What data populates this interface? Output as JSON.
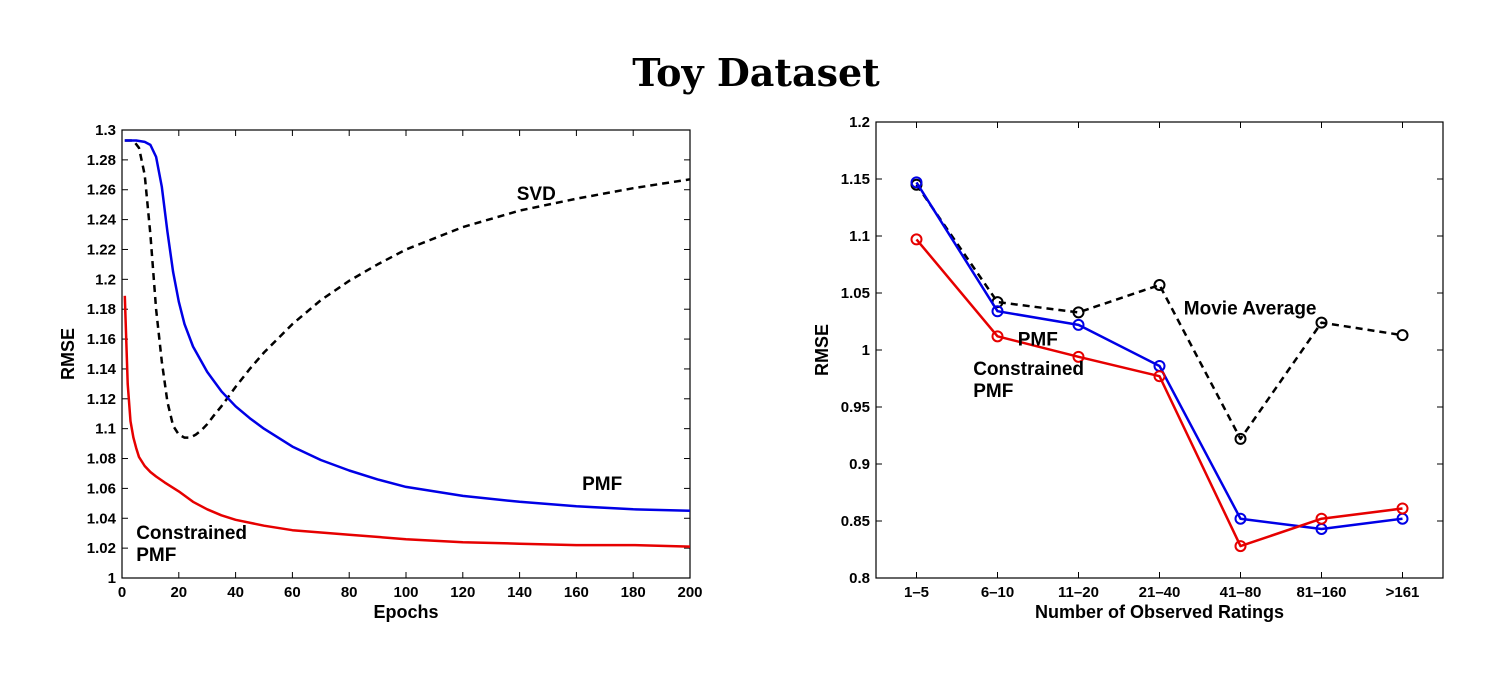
{
  "title": "Toy Dataset",
  "colors": {
    "pmf": "#0000e6",
    "constrained": "#e60000",
    "svd": "#000000",
    "avg": "#000000"
  },
  "chart_data": [
    {
      "type": "line",
      "xlabel": "Epochs",
      "ylabel": "RMSE",
      "xlim": [
        0,
        200
      ],
      "ylim": [
        1,
        1.3
      ],
      "xticks": [
        0,
        20,
        40,
        60,
        80,
        100,
        120,
        140,
        160,
        180,
        200
      ],
      "yticks": [
        1,
        1.02,
        1.04,
        1.06,
        1.08,
        1.1,
        1.12,
        1.14,
        1.16,
        1.18,
        1.2,
        1.22,
        1.24,
        1.26,
        1.28,
        1.3
      ],
      "ytick_labels": [
        "1",
        "1.02",
        "1.04",
        "1.06",
        "1.08",
        "1.1",
        "1.12",
        "1.14",
        "1.16",
        "1.18",
        "1.2",
        "1.22",
        "1.24",
        "1.26",
        "1.28",
        "1.3"
      ],
      "grid": false,
      "series": [
        {
          "name": "SVD",
          "style": "dashed",
          "color": "#000000",
          "x": [
            1,
            4,
            6,
            8,
            10,
            12,
            14,
            16,
            18,
            20,
            22,
            24,
            26,
            28,
            30,
            32,
            35,
            40,
            45,
            50,
            60,
            70,
            80,
            90,
            100,
            120,
            140,
            160,
            180,
            200
          ],
          "y": [
            1.293,
            1.293,
            1.288,
            1.27,
            1.23,
            1.18,
            1.145,
            1.118,
            1.102,
            1.096,
            1.094,
            1.094,
            1.096,
            1.099,
            1.103,
            1.108,
            1.115,
            1.128,
            1.14,
            1.151,
            1.17,
            1.186,
            1.199,
            1.21,
            1.22,
            1.235,
            1.246,
            1.254,
            1.261,
            1.267
          ]
        },
        {
          "name": "PMF",
          "style": "solid",
          "color": "#0000e6",
          "x": [
            1,
            5,
            8,
            10,
            12,
            14,
            16,
            18,
            20,
            22,
            25,
            30,
            35,
            40,
            45,
            50,
            60,
            70,
            80,
            90,
            100,
            120,
            140,
            160,
            180,
            200
          ],
          "y": [
            1.293,
            1.293,
            1.292,
            1.29,
            1.282,
            1.262,
            1.232,
            1.205,
            1.185,
            1.17,
            1.155,
            1.138,
            1.125,
            1.115,
            1.107,
            1.1,
            1.088,
            1.079,
            1.072,
            1.066,
            1.061,
            1.055,
            1.051,
            1.048,
            1.046,
            1.045
          ]
        },
        {
          "name": "Constrained PMF",
          "style": "solid",
          "color": "#e60000",
          "x": [
            1,
            2,
            3,
            4,
            5,
            6,
            8,
            10,
            12,
            15,
            20,
            25,
            30,
            35,
            40,
            50,
            60,
            80,
            100,
            120,
            140,
            160,
            180,
            200
          ],
          "y": [
            1.189,
            1.13,
            1.105,
            1.094,
            1.087,
            1.081,
            1.075,
            1.071,
            1.068,
            1.064,
            1.058,
            1.051,
            1.046,
            1.042,
            1.039,
            1.035,
            1.032,
            1.029,
            1.026,
            1.024,
            1.023,
            1.022,
            1.022,
            1.021
          ]
        }
      ],
      "annotations": [
        {
          "lines": [
            "SVD"
          ],
          "x": 139,
          "y": 1.253
        },
        {
          "lines": [
            "PMF"
          ],
          "x": 162,
          "y": 1.059
        },
        {
          "lines": [
            "Constrained",
            "PMF"
          ],
          "x": 5,
          "y": 1.026
        }
      ]
    },
    {
      "type": "line",
      "xlabel": "Number of Observed Ratings",
      "ylabel": "RMSE",
      "categories": [
        "1–5",
        "6–10",
        "11–20",
        "21–40",
        "41–80",
        "81–160",
        ">161"
      ],
      "ylim": [
        0.8,
        1.2
      ],
      "yticks": [
        0.8,
        0.85,
        0.9,
        0.95,
        1,
        1.05,
        1.1,
        1.15,
        1.2
      ],
      "ytick_labels": [
        "0.8",
        "0.85",
        "0.9",
        "0.95",
        "1",
        "1.05",
        "1.1",
        "1.15",
        "1.2"
      ],
      "grid": false,
      "series": [
        {
          "name": "Movie Average",
          "style": "dashed",
          "color": "#000000",
          "values": [
            1.145,
            1.042,
            1.033,
            1.057,
            0.922,
            1.024,
            1.013
          ]
        },
        {
          "name": "PMF",
          "style": "solid",
          "color": "#0000e6",
          "values": [
            1.147,
            1.034,
            1.022,
            0.986,
            0.852,
            0.843,
            0.852
          ]
        },
        {
          "name": "Constrained PMF",
          "style": "solid",
          "color": "#e60000",
          "values": [
            1.097,
            1.012,
            0.994,
            0.977,
            0.828,
            0.852,
            0.861
          ]
        }
      ],
      "annotations": [
        {
          "lines": [
            "Movie Average"
          ],
          "x": 4.3,
          "y": 1.031
        },
        {
          "lines": [
            "PMF"
          ],
          "x": 2.25,
          "y": 1.004
        },
        {
          "lines": [
            "Constrained",
            "PMF"
          ],
          "x": 1.7,
          "y": 0.978
        }
      ]
    }
  ]
}
